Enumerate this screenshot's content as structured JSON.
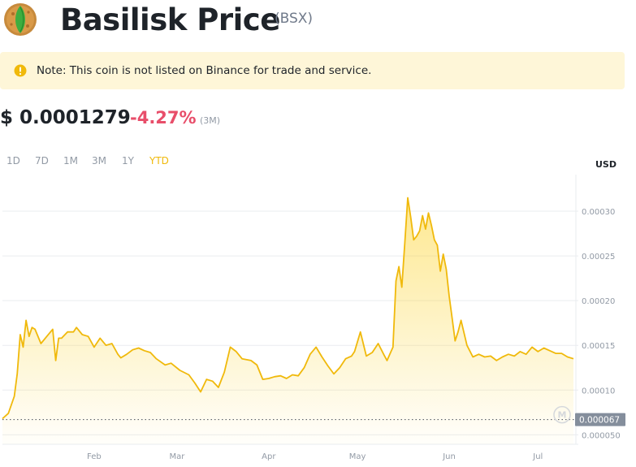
{
  "header": {
    "title": "Basilisk Price",
    "symbol": "(BSX)",
    "logo_icon": "basilisk-logo"
  },
  "note": {
    "icon": "warning-info-icon",
    "text": "Note: This coin is not listed on Binance for trade and service."
  },
  "price": {
    "value": "$ 0.0001279",
    "change": "-4.27%",
    "period": "(3M)",
    "change_color": "#e84e6a"
  },
  "ranges": [
    "1D",
    "7D",
    "1M",
    "3M",
    "1Y",
    "YTD"
  ],
  "active_range": "YTD",
  "accent_color": "#f0b90b",
  "chart_data": {
    "type": "area",
    "currency_label": "USD",
    "x_tick_labels": [
      "Feb",
      "Mar",
      "Apr",
      "May",
      "Jun",
      "Jul"
    ],
    "x_ticks_days": [
      31,
      59,
      90,
      120,
      151,
      181
    ],
    "x_range_days": [
      0,
      193
    ],
    "y_ticks": [
      5e-05,
      0.0001,
      0.00015,
      0.0002,
      0.00025,
      0.0003
    ],
    "y_tick_labels": [
      "0.000050",
      "0.00010",
      "0.00015",
      "0.00020",
      "0.00025",
      "0.00030"
    ],
    "ylim": [
      3.94e-05,
      0.0003409
    ],
    "reference_value": 6.7e-05,
    "reference_label": "0.000067",
    "grid": true,
    "watermark": "M",
    "x_days": [
      0,
      2,
      4,
      5,
      6,
      7,
      8,
      9,
      10,
      11,
      13,
      15,
      17,
      18,
      19,
      20,
      22,
      24,
      25,
      27,
      29,
      31,
      33,
      35,
      37,
      39,
      40,
      42,
      44,
      46,
      48,
      50,
      52,
      55,
      57,
      60,
      63,
      65,
      67,
      69,
      71,
      73,
      75,
      77,
      79,
      81,
      84,
      86,
      88,
      90,
      92,
      94,
      96,
      98,
      100,
      102,
      104,
      106,
      108,
      110,
      112,
      114,
      116,
      118,
      119,
      121,
      123,
      125,
      127,
      129,
      130,
      132,
      133,
      134,
      135,
      136,
      137,
      138,
      139,
      140,
      141,
      142,
      143,
      144,
      145,
      146,
      147,
      148,
      149,
      150,
      151,
      152,
      153,
      154,
      155,
      157,
      159,
      161,
      163,
      165,
      167,
      169,
      171,
      173,
      175,
      177,
      179,
      181,
      183,
      185,
      187,
      189,
      191,
      193
    ],
    "values": [
      6.8e-05,
      7.4e-05,
      9.3e-05,
      0.000118,
      0.000162,
      0.000148,
      0.000178,
      0.00016,
      0.00017,
      0.000168,
      0.000152,
      0.00016,
      0.000168,
      0.000133,
      0.000158,
      0.000158,
      0.000165,
      0.000165,
      0.00017,
      0.000162,
      0.00016,
      0.000148,
      0.000158,
      0.00015,
      0.000152,
      0.00014,
      0.000136,
      0.00014,
      0.000145,
      0.000147,
      0.000144,
      0.000142,
      0.000135,
      0.000128,
      0.00013,
      0.000122,
      0.000117,
      0.000108,
      9.8e-05,
      0.000112,
      0.00011,
      0.000103,
      0.00012,
      0.000148,
      0.000143,
      0.000135,
      0.000133,
      0.000128,
      0.000112,
      0.000113,
      0.000115,
      0.000116,
      0.000113,
      0.000117,
      0.000116,
      0.000125,
      0.00014,
      0.000148,
      0.000137,
      0.000127,
      0.000118,
      0.000125,
      0.000135,
      0.000138,
      0.000143,
      0.000165,
      0.000138,
      0.000142,
      0.000152,
      0.000139,
      0.000133,
      0.000148,
      0.000222,
      0.000238,
      0.000215,
      0.000265,
      0.000315,
      0.000293,
      0.000268,
      0.000272,
      0.000278,
      0.000295,
      0.00028,
      0.000298,
      0.000284,
      0.000268,
      0.000262,
      0.000233,
      0.000252,
      0.000235,
      0.000205,
      0.00018,
      0.000155,
      0.000165,
      0.000178,
      0.00015,
      0.000137,
      0.00014,
      0.000137,
      0.000138,
      0.000133,
      0.000137,
      0.00014,
      0.000138,
      0.000143,
      0.00014,
      0.000148,
      0.000143,
      0.000147,
      0.000144,
      0.000141,
      0.000141,
      0.000137,
      0.000135
    ]
  }
}
